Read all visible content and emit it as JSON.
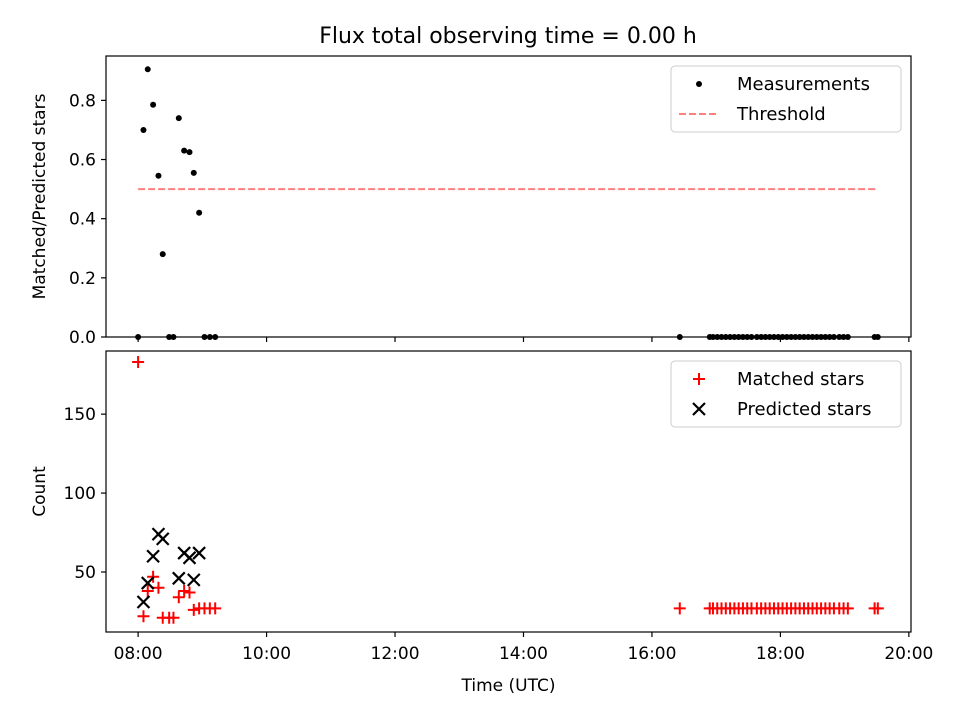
{
  "chart_data": [
    {
      "type": "scatter",
      "title": "Flux total observing time = 0.00 h",
      "xlabel": "",
      "ylabel": "Matched/Predicted stars",
      "xlim": [
        "07:30",
        "20:02"
      ],
      "ylim": [
        0,
        0.95
      ],
      "xticks": [
        "08:00",
        "10:00",
        "12:00",
        "14:00",
        "16:00",
        "18:00",
        "20:00"
      ],
      "yticks": [
        0.0,
        0.2,
        0.4,
        0.6,
        0.8
      ],
      "ytick_labels": [
        "0.0",
        "0.2",
        "0.4",
        "0.6",
        "0.8"
      ],
      "legend_position": "top-right",
      "series": [
        {
          "name": "Measurements",
          "kind": "scatter",
          "marker": "dot",
          "color": "#000000",
          "points": [
            [
              "08:00",
              0.0
            ],
            [
              "08:05",
              0.7
            ],
            [
              "08:09",
              0.905
            ],
            [
              "08:14",
              0.785
            ],
            [
              "08:19",
              0.545
            ],
            [
              "08:23",
              0.28
            ],
            [
              "08:29",
              0.0
            ],
            [
              "08:33",
              0.0
            ],
            [
              "08:38",
              0.74
            ],
            [
              "08:43",
              0.63
            ],
            [
              "08:48",
              0.625
            ],
            [
              "08:52",
              0.555
            ],
            [
              "08:57",
              0.42
            ],
            [
              "09:02",
              0.0
            ],
            [
              "09:07",
              0.0
            ],
            [
              "09:12",
              0.0
            ],
            [
              "16:26",
              0.0
            ],
            [
              "16:54",
              0.0
            ],
            [
              "16:57",
              0.0
            ],
            [
              "17:01",
              0.0
            ],
            [
              "17:05",
              0.0
            ],
            [
              "17:09",
              0.0
            ],
            [
              "17:13",
              0.0
            ],
            [
              "17:17",
              0.0
            ],
            [
              "17:21",
              0.0
            ],
            [
              "17:25",
              0.0
            ],
            [
              "17:29",
              0.0
            ],
            [
              "17:33",
              0.0
            ],
            [
              "17:38",
              0.0
            ],
            [
              "17:42",
              0.0
            ],
            [
              "17:46",
              0.0
            ],
            [
              "17:50",
              0.0
            ],
            [
              "17:54",
              0.0
            ],
            [
              "17:58",
              0.0
            ],
            [
              "18:02",
              0.0
            ],
            [
              "18:06",
              0.0
            ],
            [
              "18:10",
              0.0
            ],
            [
              "18:14",
              0.0
            ],
            [
              "18:18",
              0.0
            ],
            [
              "18:22",
              0.0
            ],
            [
              "18:26",
              0.0
            ],
            [
              "18:30",
              0.0
            ],
            [
              "18:34",
              0.0
            ],
            [
              "18:38",
              0.0
            ],
            [
              "18:42",
              0.0
            ],
            [
              "18:46",
              0.0
            ],
            [
              "18:50",
              0.0
            ],
            [
              "18:55",
              0.0
            ],
            [
              "18:59",
              0.0
            ],
            [
              "19:03",
              0.0
            ],
            [
              "19:28",
              0.0
            ],
            [
              "19:31",
              0.0
            ]
          ]
        },
        {
          "name": "Threshold",
          "kind": "line",
          "style": "dashed",
          "color": "#ff7f7f",
          "points": [
            [
              "08:00",
              0.5
            ],
            [
              "19:31",
              0.5
            ]
          ]
        }
      ]
    },
    {
      "type": "scatter",
      "title": "",
      "xlabel": "Time (UTC)",
      "ylabel": "Count",
      "xlim": [
        "07:30",
        "20:02"
      ],
      "ylim": [
        12,
        190
      ],
      "xticks": [
        "08:00",
        "10:00",
        "12:00",
        "14:00",
        "16:00",
        "18:00",
        "20:00"
      ],
      "xtick_labels": [
        "08:00",
        "10:00",
        "12:00",
        "14:00",
        "16:00",
        "18:00",
        "20:00"
      ],
      "yticks": [
        50,
        100,
        150
      ],
      "ytick_labels": [
        "50",
        "100",
        "150"
      ],
      "legend_position": "top-right",
      "series": [
        {
          "name": "Matched stars",
          "marker": "plus",
          "color": "#ff0000",
          "points": [
            [
              "08:00",
              183
            ],
            [
              "08:05",
              22
            ],
            [
              "08:09",
              38
            ],
            [
              "08:14",
              47
            ],
            [
              "08:19",
              40
            ],
            [
              "08:23",
              21
            ],
            [
              "08:29",
              21
            ],
            [
              "08:33",
              21
            ],
            [
              "08:38",
              34
            ],
            [
              "08:43",
              38
            ],
            [
              "08:48",
              37
            ],
            [
              "08:52",
              26
            ],
            [
              "08:57",
              27
            ],
            [
              "09:02",
              27
            ],
            [
              "09:07",
              27
            ],
            [
              "09:12",
              27
            ],
            [
              "16:26",
              27
            ],
            [
              "16:54",
              27
            ],
            [
              "16:57",
              27
            ],
            [
              "17:01",
              27
            ],
            [
              "17:05",
              27
            ],
            [
              "17:09",
              27
            ],
            [
              "17:13",
              27
            ],
            [
              "17:17",
              27
            ],
            [
              "17:21",
              27
            ],
            [
              "17:25",
              27
            ],
            [
              "17:29",
              27
            ],
            [
              "17:33",
              27
            ],
            [
              "17:38",
              27
            ],
            [
              "17:42",
              27
            ],
            [
              "17:46",
              27
            ],
            [
              "17:50",
              27
            ],
            [
              "17:54",
              27
            ],
            [
              "17:58",
              27
            ],
            [
              "18:02",
              27
            ],
            [
              "18:06",
              27
            ],
            [
              "18:10",
              27
            ],
            [
              "18:14",
              27
            ],
            [
              "18:18",
              27
            ],
            [
              "18:22",
              27
            ],
            [
              "18:26",
              27
            ],
            [
              "18:30",
              27
            ],
            [
              "18:34",
              27
            ],
            [
              "18:38",
              27
            ],
            [
              "18:42",
              27
            ],
            [
              "18:46",
              27
            ],
            [
              "18:50",
              27
            ],
            [
              "18:55",
              27
            ],
            [
              "18:59",
              27
            ],
            [
              "19:03",
              27
            ],
            [
              "19:28",
              27
            ],
            [
              "19:31",
              27
            ]
          ]
        },
        {
          "name": "Predicted stars",
          "marker": "x",
          "color": "#000000",
          "points": [
            [
              "08:05",
              31
            ],
            [
              "08:09",
              43
            ],
            [
              "08:14",
              60
            ],
            [
              "08:19",
              74
            ],
            [
              "08:23",
              71
            ],
            [
              "08:38",
              46
            ],
            [
              "08:43",
              62
            ],
            [
              "08:48",
              59
            ],
            [
              "08:52",
              45
            ],
            [
              "08:57",
              62
            ]
          ]
        }
      ]
    }
  ]
}
